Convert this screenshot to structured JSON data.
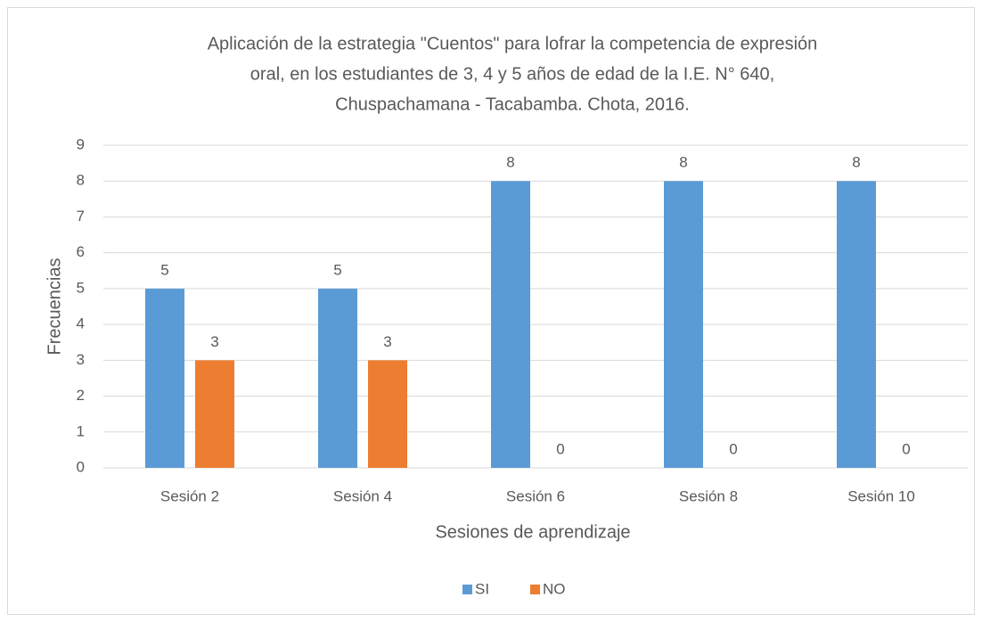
{
  "chart_data": {
    "type": "bar",
    "title": [
      "Aplicación de la estrategia \"Cuentos\" para lofrar la competencia de expresión",
      "oral, en los estudiantes de 3, 4 y 5 años de edad de la I.E. N° 640,",
      "Chuspachamana - Tacabamba. Chota, 2016."
    ],
    "x_label": "Sesiones de aprendizaje",
    "y_label": "Frecuencias",
    "categories": [
      "Sesión 2",
      "Sesión 4",
      "Sesión 6",
      "Sesión 8",
      "Sesión 10"
    ],
    "series": [
      {
        "name": "SI",
        "color": "#5b9bd5",
        "values": [
          5,
          5,
          8,
          8,
          8
        ]
      },
      {
        "name": "NO",
        "color": "#ed7d31",
        "values": [
          3,
          3,
          0,
          0,
          0
        ]
      }
    ],
    "ylim": [
      0,
      9
    ],
    "yticks": [
      0,
      1,
      2,
      3,
      4,
      5,
      6,
      7,
      8,
      9
    ],
    "grid": true,
    "legend": "bottom"
  }
}
